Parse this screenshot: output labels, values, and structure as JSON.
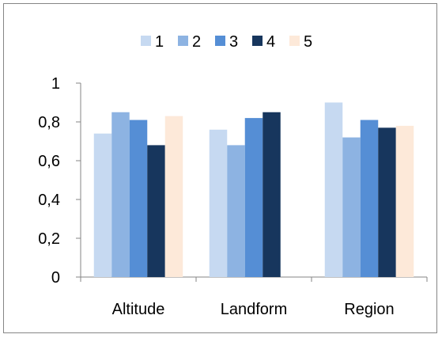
{
  "chart_data": {
    "type": "bar",
    "title": "",
    "xlabel": "",
    "ylabel": "",
    "categories": [
      "Altitude",
      "Landform",
      "Region"
    ],
    "series": [
      {
        "name": "1",
        "color": "#c6d9f1",
        "values": [
          0.74,
          0.76,
          0.9
        ]
      },
      {
        "name": "2",
        "color": "#8db3e2",
        "values": [
          0.85,
          0.68,
          0.72
        ]
      },
      {
        "name": "3",
        "color": "#558ed5",
        "values": [
          0.81,
          0.82,
          0.81
        ]
      },
      {
        "name": "4",
        "color": "#17365d",
        "values": [
          0.68,
          0.85,
          0.77
        ]
      },
      {
        "name": "5",
        "color": "#fde9d9",
        "values": [
          0.83,
          null,
          0.78
        ]
      }
    ],
    "ylim": [
      0,
      1
    ],
    "yticks": [
      "0",
      "0,2",
      "0,4",
      "0,6",
      "0,8",
      "1"
    ],
    "ytick_values": [
      0,
      0.2,
      0.4,
      0.6,
      0.8,
      1
    ],
    "grid": false,
    "legend_position": "top"
  }
}
